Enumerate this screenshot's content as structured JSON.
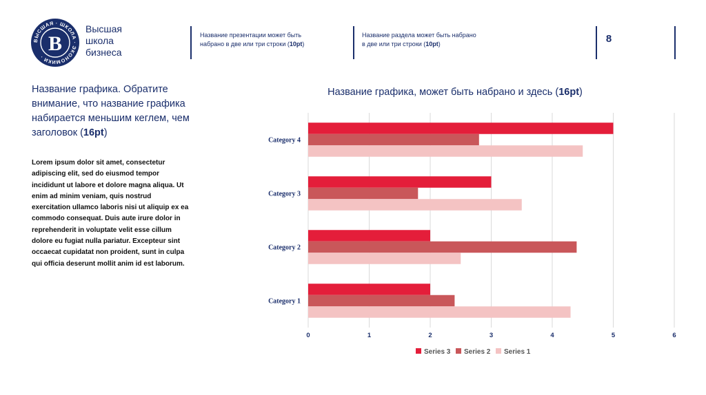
{
  "header": {
    "logo_lines": [
      "Высшая",
      "школа",
      "бизнеса"
    ],
    "logo_ring_text": "ВЫСШАЯ · ШКОЛА · ЭКОНОМИКИ ·",
    "presentation_title_line1": "Название презентации может быть",
    "presentation_title_line2_prefix": "набрано в две или три строки (",
    "presentation_title_line2_bold": "10pt",
    "presentation_title_line2_suffix": ")",
    "section_title_line1": "Название раздела может быть набрано",
    "section_title_line2_prefix": "в две или три строки (",
    "section_title_line2_bold": "10pt",
    "section_title_line2_suffix": ")",
    "page_number": "8"
  },
  "left": {
    "title_main": "Название графика. Обратите внимание, что название графика набирается меньшим кеглем, чем заголовок (",
    "title_bold": "16pt",
    "title_end": ")",
    "body": "Lorem ipsum dolor sit amet, consectetur adipiscing elit, sed do eiusmod tempor incididunt ut labore et dolore magna aliqua. Ut enim ad minim veniam, quis nostrud exercitation ullamco laboris nisi ut aliquip ex ea commodo consequat. Duis aute irure dolor in reprehenderit in voluptate velit esse cillum dolore eu fugiat nulla pariatur. Excepteur sint occaecat cupidatat non proident, sunt in culpa qui officia deserunt mollit anim id est laborum."
  },
  "chart_heading": {
    "main": "Название графика, может быть набрано и здесь (",
    "bold": "16pt",
    "end": ")"
  },
  "chart_data": {
    "type": "bar",
    "orientation": "horizontal",
    "categories": [
      "Category 4",
      "Category 3",
      "Category 2",
      "Category 1"
    ],
    "series": [
      {
        "name": "Series 3",
        "color": "#e41e3a",
        "values": [
          5,
          3,
          2,
          2
        ]
      },
      {
        "name": "Series 2",
        "color": "#c9575a",
        "values": [
          2.8,
          1.8,
          4.4,
          2.4
        ]
      },
      {
        "name": "Series 1",
        "color": "#f4c3c3",
        "values": [
          4.5,
          3.5,
          2.5,
          4.3
        ]
      }
    ],
    "xlim": [
      0,
      6
    ],
    "xticks": [
      "0",
      "1",
      "2",
      "3",
      "4",
      "5",
      "6"
    ],
    "grid": true,
    "legend": "bottom",
    "legend_order": [
      "Series 3",
      "Series 2",
      "Series 1"
    ]
  },
  "colors": {
    "brand_blue": "#1a2e6b",
    "gridline": "#d9d9d9"
  }
}
